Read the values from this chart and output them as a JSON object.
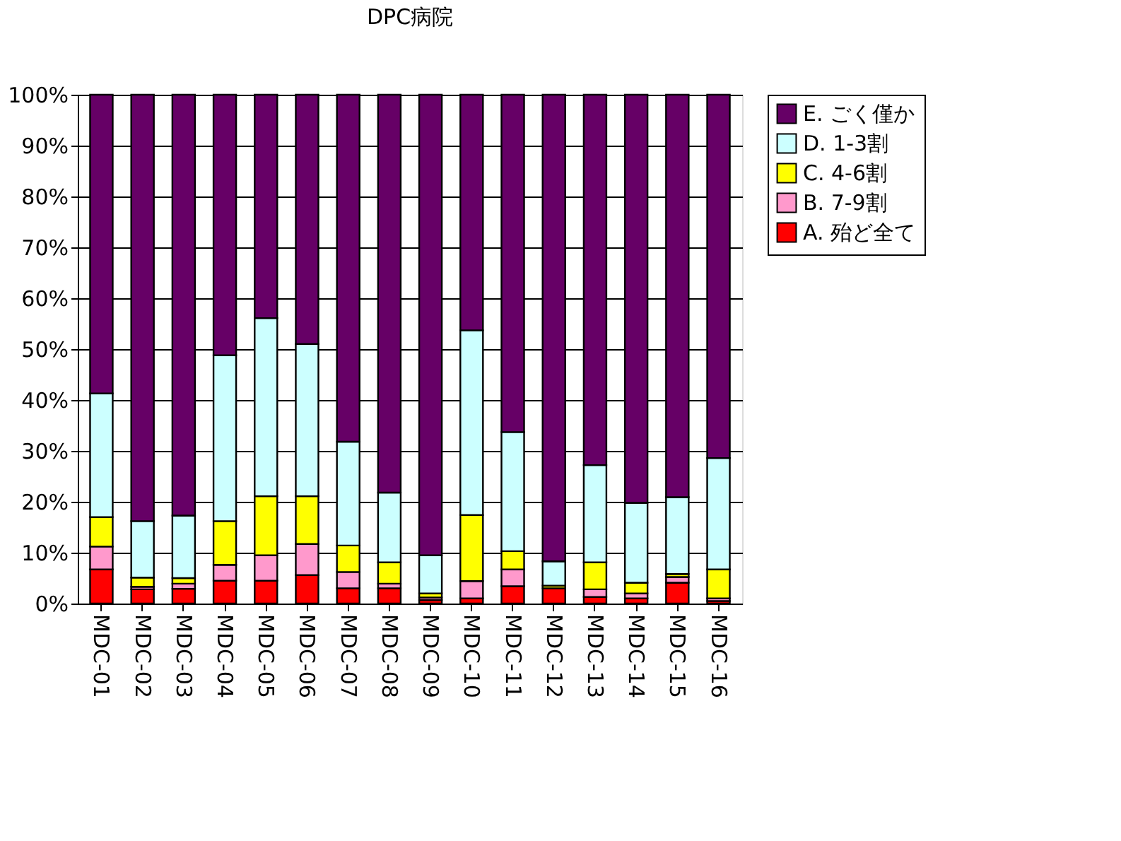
{
  "chart_data": {
    "type": "bar",
    "title": "DPC病院",
    "stacked": true,
    "categories": [
      "MDC-01",
      "MDC-02",
      "MDC-03",
      "MDC-04",
      "MDC-05",
      "MDC-06",
      "MDC-07",
      "MDC-08",
      "MDC-09",
      "MDC-10",
      "MDC-11",
      "MDC-12",
      "MDC-13",
      "MDC-14",
      "MDC-15",
      "MDC-16"
    ],
    "series": [
      {
        "name": "A. 殆ど全て",
        "color": "#ff0000",
        "values": [
          6.7,
          2.8,
          2.9,
          4.5,
          4.5,
          5.6,
          3.0,
          3.0,
          0.7,
          1.0,
          3.4,
          3.0,
          1.3,
          1.0,
          4.1,
          0.5
        ]
      },
      {
        "name": "B. 7-9割",
        "color": "#ff99cc",
        "values": [
          4.5,
          0.5,
          1.0,
          3.1,
          5.0,
          6.1,
          3.2,
          0.9,
          0.5,
          3.4,
          3.3,
          null,
          1.5,
          1.0,
          1.1,
          0.5
        ]
      },
      {
        "name": "C. 4-6割",
        "color": "#ffff00",
        "values": [
          5.8,
          1.8,
          1.1,
          8.6,
          11.6,
          9.4,
          5.2,
          4.2,
          0.8,
          13.0,
          3.6,
          0.5,
          5.3,
          2.1,
          0.6,
          5.7
        ]
      },
      {
        "name": "D. 1-3割",
        "color": "#ccffff",
        "values": [
          24.3,
          11.1,
          12.3,
          32.6,
          35.0,
          29.9,
          20.4,
          13.7,
          7.5,
          36.3,
          23.4,
          4.8,
          19.1,
          15.7,
          15.1,
          21.9
        ]
      },
      {
        "name": "E. ごく僅か",
        "color": "#660066",
        "values": [
          58.7,
          83.8,
          82.7,
          51.2,
          43.9,
          49.0,
          68.2,
          78.2,
          90.5,
          46.3,
          66.3,
          91.7,
          72.8,
          80.2,
          79.1,
          71.4
        ]
      }
    ],
    "ylim": [
      0,
      100
    ],
    "yticks": [
      {
        "value": 0,
        "label": "0%"
      },
      {
        "value": 10,
        "label": "10%"
      },
      {
        "value": 20,
        "label": "20%"
      },
      {
        "value": 30,
        "label": "30%"
      },
      {
        "value": 40,
        "label": "40%"
      },
      {
        "value": 50,
        "label": "50%"
      },
      {
        "value": 60,
        "label": "60%"
      },
      {
        "value": 70,
        "label": "70%"
      },
      {
        "value": 80,
        "label": "80%"
      },
      {
        "value": 90,
        "label": "90%"
      },
      {
        "value": 100,
        "label": "100%"
      }
    ],
    "grid": "y",
    "legend": "right"
  }
}
